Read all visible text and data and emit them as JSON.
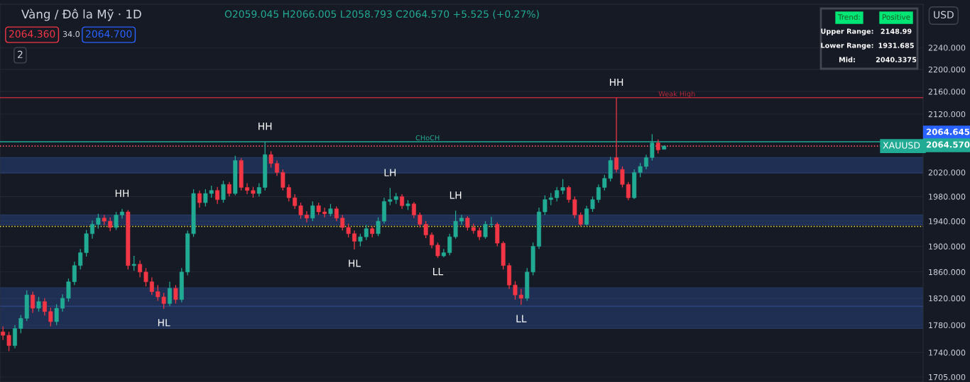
{
  "chart_data": {
    "type": "candlestick",
    "title": "Vàng / Đô la Mỹ · 1D",
    "subtitle": "O2059.045 H2066.005 L2058.793 C2064.570 +5.525 (+0.27%)",
    "categories": [
      null,
      null,
      null,
      null,
      null,
      null,
      null,
      null,
      null,
      null,
      null,
      null,
      null,
      null,
      null,
      null,
      null,
      null,
      null,
      null,
      null,
      null,
      null,
      null,
      null,
      null,
      null,
      null,
      null,
      null,
      null,
      null,
      null,
      null,
      null,
      null,
      null,
      null,
      null,
      null,
      null,
      null,
      null,
      null,
      null,
      null,
      null,
      null,
      null,
      null,
      null,
      null,
      null,
      null,
      null,
      null,
      null,
      null,
      null,
      null,
      null,
      null,
      null,
      null,
      null,
      null,
      null,
      null,
      null,
      null,
      null,
      null,
      null,
      null,
      null,
      null,
      null,
      null,
      null,
      null,
      null,
      null,
      null,
      null,
      null,
      null,
      null,
      null,
      null,
      null,
      null,
      null,
      null,
      null,
      null,
      null,
      null,
      null,
      null,
      null,
      null,
      null,
      null,
      null,
      null,
      null,
      null,
      null,
      null,
      null,
      null,
      null,
      null,
      null,
      null,
      null,
      null,
      null,
      null,
      null,
      null,
      null,
      null,
      null,
      null,
      null,
      null,
      null,
      null,
      null,
      null,
      null,
      null,
      null,
      null,
      null,
      null,
      null,
      null,
      null,
      null,
      null,
      null,
      null,
      null,
      null,
      null,
      null,
      null,
      null,
      null,
      null,
      null,
      null,
      null
    ],
    "ohlc": [
      [
        1770,
        1778,
        1758,
        1765
      ],
      [
        1765,
        1770,
        1742,
        1750
      ],
      [
        1750,
        1780,
        1746,
        1775
      ],
      [
        1775,
        1795,
        1768,
        1790
      ],
      [
        1790,
        1832,
        1786,
        1825
      ],
      [
        1825,
        1830,
        1798,
        1805
      ],
      [
        1805,
        1822,
        1800,
        1815
      ],
      [
        1815,
        1820,
        1794,
        1800
      ],
      [
        1800,
        1806,
        1778,
        1785
      ],
      [
        1785,
        1811,
        1780,
        1805
      ],
      [
        1805,
        1826,
        1800,
        1820
      ],
      [
        1820,
        1850,
        1815,
        1845
      ],
      [
        1845,
        1876,
        1840,
        1870
      ],
      [
        1870,
        1896,
        1864,
        1890
      ],
      [
        1890,
        1926,
        1884,
        1920
      ],
      [
        1920,
        1941,
        1912,
        1935
      ],
      [
        1935,
        1952,
        1928,
        1945
      ],
      [
        1945,
        1950,
        1934,
        1940
      ],
      [
        1940,
        1946,
        1924,
        1930
      ],
      [
        1930,
        1955,
        1926,
        1950
      ],
      [
        1950,
        1960,
        1944,
        1955
      ],
      [
        1955,
        1958,
        1864,
        1870
      ],
      [
        1870,
        1885,
        1862,
        1872
      ],
      [
        1872,
        1878,
        1852,
        1860
      ],
      [
        1860,
        1866,
        1838,
        1845
      ],
      [
        1845,
        1852,
        1825,
        1830
      ],
      [
        1830,
        1840,
        1816,
        1822
      ],
      [
        1822,
        1828,
        1804,
        1812
      ],
      [
        1812,
        1845,
        1808,
        1835
      ],
      [
        1835,
        1840,
        1812,
        1818
      ],
      [
        1818,
        1866,
        1814,
        1860
      ],
      [
        1860,
        1925,
        1855,
        1920
      ],
      [
        1920,
        1992,
        1915,
        1985
      ],
      [
        1985,
        1990,
        1962,
        1970
      ],
      [
        1970,
        1992,
        1964,
        1985
      ],
      [
        1985,
        1998,
        1978,
        1990
      ],
      [
        1990,
        1996,
        1968,
        1975
      ],
      [
        1975,
        2006,
        1970,
        2000
      ],
      [
        2000,
        2004,
        1980,
        1985
      ],
      [
        1985,
        2048,
        1982,
        2040
      ],
      [
        2040,
        2044,
        1990,
        1995
      ],
      [
        1995,
        2002,
        1984,
        1990
      ],
      [
        1990,
        1996,
        1978,
        1985
      ],
      [
        1985,
        2002,
        1980,
        1995
      ],
      [
        1995,
        2072,
        1990,
        2050
      ],
      [
        2050,
        2056,
        2028,
        2035
      ],
      [
        2035,
        2040,
        2014,
        2020
      ],
      [
        2020,
        2025,
        1990,
        1995
      ],
      [
        1995,
        2000,
        1972,
        1978
      ],
      [
        1978,
        1984,
        1960,
        1965
      ],
      [
        1965,
        1970,
        1944,
        1950
      ],
      [
        1950,
        1956,
        1938,
        1945
      ],
      [
        1945,
        1972,
        1940,
        1965
      ],
      [
        1965,
        1970,
        1950,
        1955
      ],
      [
        1955,
        1962,
        1946,
        1952
      ],
      [
        1952,
        1968,
        1948,
        1960
      ],
      [
        1960,
        1964,
        1940,
        1945
      ],
      [
        1945,
        1950,
        1925,
        1930
      ],
      [
        1930,
        1936,
        1914,
        1920
      ],
      [
        1920,
        1925,
        1895,
        1908
      ],
      [
        1908,
        1920,
        1900,
        1915
      ],
      [
        1915,
        1934,
        1910,
        1928
      ],
      [
        1928,
        1932,
        1914,
        1920
      ],
      [
        1920,
        1946,
        1916,
        1940
      ],
      [
        1940,
        1978,
        1936,
        1972
      ],
      [
        1972,
        1994,
        1966,
        1975
      ],
      [
        1975,
        1986,
        1968,
        1980
      ],
      [
        1980,
        1984,
        1960,
        1965
      ],
      [
        1965,
        1974,
        1958,
        1968
      ],
      [
        1968,
        1971,
        1945,
        1950
      ],
      [
        1950,
        1954,
        1930,
        1935
      ],
      [
        1935,
        1940,
        1913,
        1918
      ],
      [
        1918,
        1922,
        1897,
        1902
      ],
      [
        1902,
        1906,
        1882,
        1885
      ],
      [
        1885,
        1896,
        1883,
        1890
      ],
      [
        1890,
        1920,
        1886,
        1915
      ],
      [
        1915,
        1957,
        1912,
        1940
      ],
      [
        1940,
        1950,
        1934,
        1945
      ],
      [
        1945,
        1948,
        1925,
        1930
      ],
      [
        1930,
        1936,
        1920,
        1925
      ],
      [
        1925,
        1930,
        1910,
        1915
      ],
      [
        1915,
        1940,
        1912,
        1935
      ],
      [
        1935,
        1947,
        1930,
        1935
      ],
      [
        1935,
        1938,
        1900,
        1905
      ],
      [
        1905,
        1908,
        1864,
        1870
      ],
      [
        1870,
        1874,
        1834,
        1840
      ],
      [
        1840,
        1846,
        1818,
        1825
      ],
      [
        1825,
        1834,
        1810,
        1820
      ],
      [
        1820,
        1866,
        1816,
        1860
      ],
      [
        1860,
        1906,
        1855,
        1900
      ],
      [
        1900,
        1962,
        1896,
        1955
      ],
      [
        1955,
        1982,
        1950,
        1975
      ],
      [
        1975,
        1986,
        1966,
        1978
      ],
      [
        1978,
        1996,
        1972,
        1990
      ],
      [
        1990,
        2009,
        1984,
        1995
      ],
      [
        1995,
        1998,
        1970,
        1975
      ],
      [
        1975,
        1980,
        1945,
        1950
      ],
      [
        1950,
        1954,
        1932,
        1935
      ],
      [
        1935,
        1965,
        1933,
        1960
      ],
      [
        1960,
        1980,
        1955,
        1975
      ],
      [
        1975,
        2000,
        1970,
        1995
      ],
      [
        1995,
        2016,
        1990,
        2010
      ],
      [
        2010,
        2046,
        2005,
        2040
      ],
      [
        2045,
        2149,
        2020,
        2025
      ],
      [
        2025,
        2030,
        1995,
        2000
      ],
      [
        2000,
        2004,
        1974,
        1978
      ],
      [
        1978,
        2025,
        1976,
        2020
      ],
      [
        2020,
        2036,
        2012,
        2030
      ],
      [
        2030,
        2050,
        2025,
        2045
      ],
      [
        2045,
        2085,
        2040,
        2070
      ],
      [
        2070,
        2076,
        2052,
        2058
      ],
      [
        2059.045,
        2066.005,
        2058.793,
        2064.57
      ],
      null,
      null,
      null,
      null,
      null,
      null,
      null,
      null,
      null,
      null,
      null,
      null,
      null,
      null,
      null,
      null,
      null,
      null,
      null,
      null,
      null,
      null,
      null,
      null,
      null,
      null,
      null,
      null,
      null,
      null,
      null,
      null,
      null,
      null,
      null,
      null,
      null,
      null,
      null,
      null,
      null,
      null,
      null
    ],
    "log": true,
    "ylim": [
      1698,
      2322
    ],
    "yticks": [
      {
        "value": 1705,
        "label": "1705.000"
      },
      {
        "value": 1740,
        "label": "1740.000"
      },
      {
        "value": 1780,
        "label": "1780.000"
      },
      {
        "value": 1820,
        "label": "1820.000"
      },
      {
        "value": 1860,
        "label": "1860.000"
      },
      {
        "value": 1900,
        "label": "1900.000"
      },
      {
        "value": 1940,
        "label": "1940.000"
      },
      {
        "value": 1980,
        "label": "1980.000"
      },
      {
        "value": 2020,
        "label": "2020.000"
      },
      {
        "value": 2120,
        "label": "2120.000"
      },
      {
        "value": 2160,
        "label": "2160.000"
      },
      {
        "value": 2200,
        "label": "2200.000"
      },
      {
        "value": 2240,
        "label": "2240.000"
      }
    ],
    "tick_labels": "y",
    "grid": "y",
    "bands": [
      {
        "axis": "y",
        "from": 1775,
        "to": 1808,
        "color": "#2a4a8c"
      },
      {
        "axis": "y",
        "from": 1808,
        "to": 1836,
        "color": "#2a4a8c"
      },
      {
        "axis": "y",
        "from": 1934,
        "to": 1950,
        "color": "#2a4a8c"
      },
      {
        "axis": "y",
        "from": 2019,
        "to": 2045,
        "color": "#2a4a8c"
      }
    ],
    "ref_lines": [
      {
        "axis": "y",
        "value": 2064.57,
        "label": "XAUUSD",
        "color": "#f7525f",
        "line_style": "dotted"
      },
      {
        "axis": "y",
        "value": 1931.685,
        "label": null,
        "color": "#f0e442",
        "line_style": "dotted"
      },
      {
        "axis": "y",
        "value": 2149,
        "label": "Weak High",
        "color": "#b2283a",
        "line_style": "solid"
      },
      {
        "axis": "y",
        "value": 2072,
        "label": "CHoCH",
        "color": "#22ab94",
        "line_style": "solid"
      }
    ],
    "annotations": [
      {
        "text": "HH",
        "y": 1960
      },
      {
        "text": "HL",
        "y": 1804
      },
      {
        "text": "HH",
        "y": 2072
      },
      {
        "text": "HL",
        "y": 1895
      },
      {
        "text": "LH",
        "y": 1994
      },
      {
        "text": "LL",
        "y": 1882
      },
      {
        "text": "LH",
        "y": 1957
      },
      {
        "text": "LL",
        "y": 1810
      },
      {
        "text": "HH",
        "y": 2149
      },
      "2064.360",
      "34.0",
      "2064.700",
      "2",
      "USD",
      "Trend:",
      "Positive",
      "Upper Range:",
      "2148.99",
      "Lower Range:",
      "1931.685",
      "Mid:",
      "2040.3375",
      "2064.645",
      "2064.570"
    ],
    "legend": false
  }
}
